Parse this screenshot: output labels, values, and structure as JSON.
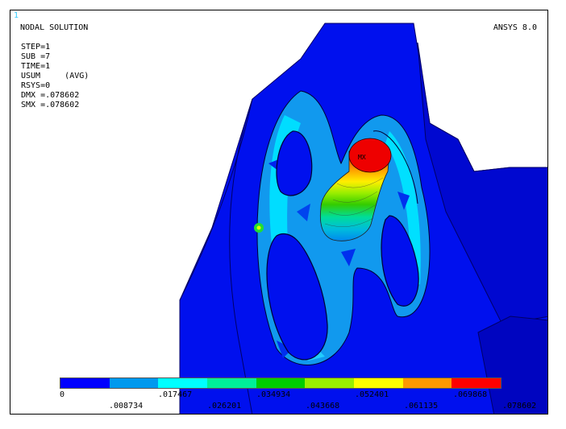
{
  "window_number": "1",
  "header": {
    "title": "NODAL SOLUTION",
    "program": "ANSYS 8.0"
  },
  "info": [
    "STEP=1",
    "SUB =7",
    "TIME=1",
    "USUM     (AVG)",
    "RSYS=0",
    "DMX =.078602",
    "SMX =.078602"
  ],
  "max_marker": "MX",
  "legend": {
    "colors": [
      "#0000ff",
      "#0099ee",
      "#00ffff",
      "#00ee99",
      "#00cc00",
      "#99ee00",
      "#ffff00",
      "#ff9900",
      "#ff0000"
    ],
    "top_labels": [
      "0",
      ".017467",
      ".034934",
      ".052401",
      ".069868"
    ],
    "bottom_labels": [
      ".008734",
      ".026201",
      ".043668",
      ".061135",
      ".078602"
    ]
  }
}
